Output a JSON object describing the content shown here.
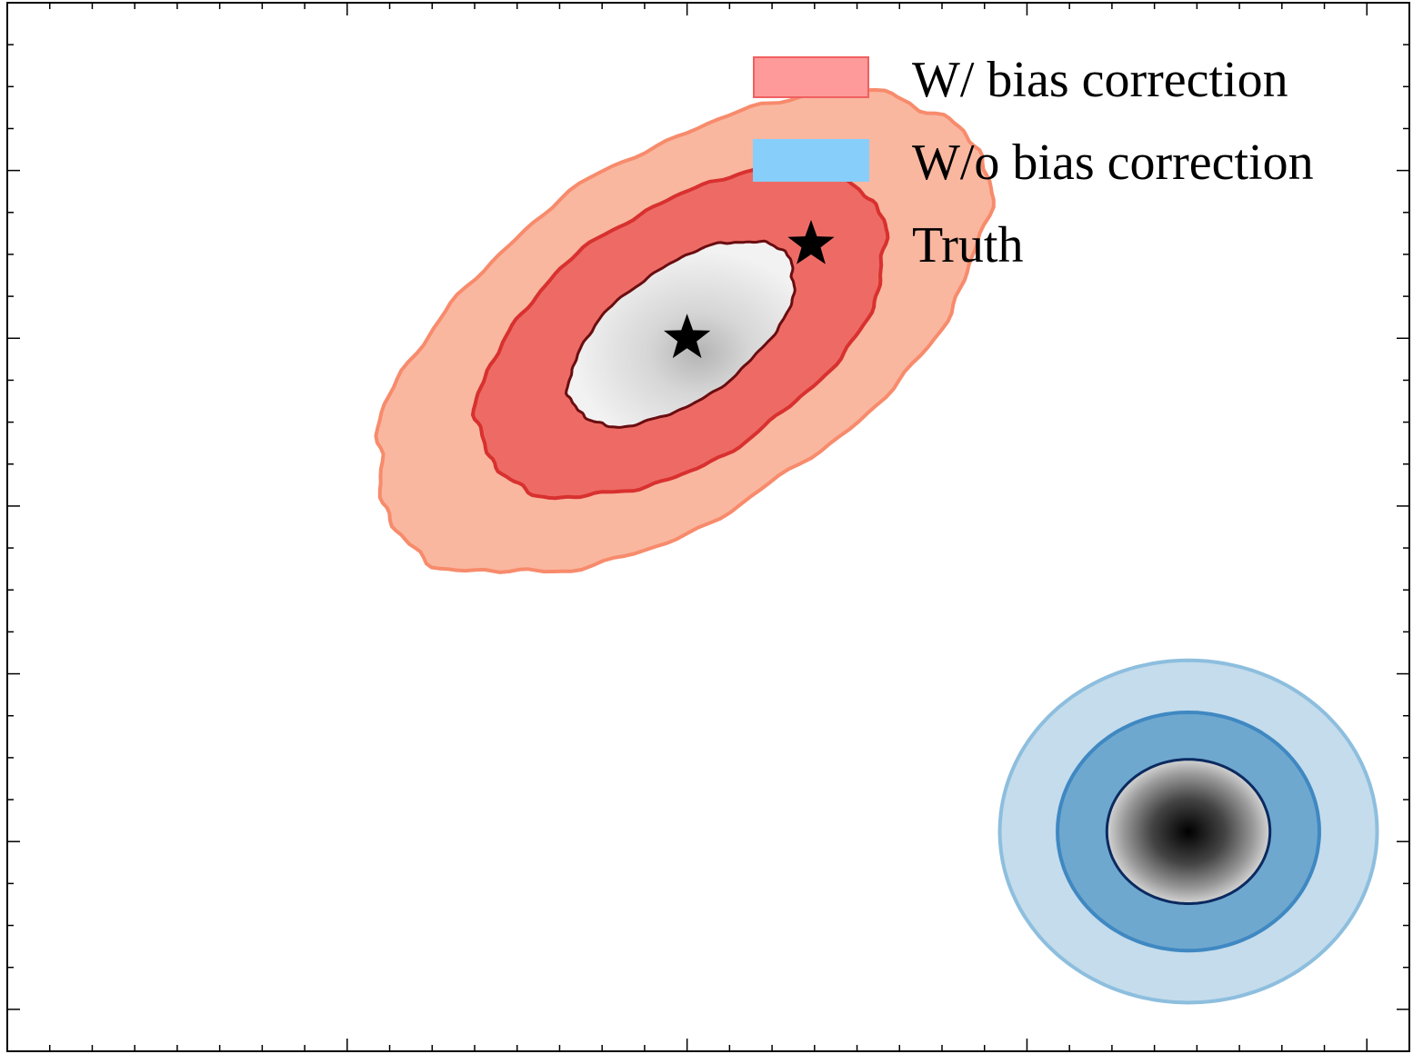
{
  "chart_data": {
    "type": "contour",
    "title": "",
    "xlabel": "",
    "ylabel": "",
    "tick_labels_visible": false,
    "grid": false,
    "legend_position": "top-right",
    "legend": [
      {
        "label": "W/ bias correction",
        "kind": "patch",
        "color": "#ff9a9a",
        "edge": "#f06060"
      },
      {
        "label": "W/o bias correction",
        "kind": "patch",
        "color": "#87cefa",
        "edge": "#87cefa"
      },
      {
        "label": "Truth",
        "kind": "star",
        "color": "#000000"
      }
    ],
    "series": [
      {
        "name": "W/ bias correction",
        "center": [
          3.97,
          4.03
        ],
        "levels": [
          {
            "rx": 2.05,
            "ry": 1.05,
            "rot": 34,
            "fill": "#fab7a0",
            "stroke": "#f78b6c"
          },
          {
            "rx": 1.36,
            "ry": 0.74,
            "rot": 34,
            "fill": "#ee6b65",
            "stroke": "#d8312f"
          },
          {
            "rx": 0.77,
            "ry": 0.39,
            "rot": 36,
            "fill": "#ececec",
            "stroke": "#6a0d10"
          }
        ],
        "peak": [
          4.2,
          3.78
        ]
      },
      {
        "name": "W/o bias correction",
        "center": [
          6.95,
          1.06
        ],
        "levels": [
          {
            "rx": 1.11,
            "ry": 1.02,
            "rot": 0,
            "fill": "#c4dcec",
            "stroke": "#8dbede"
          },
          {
            "rx": 0.77,
            "ry": 0.71,
            "rot": 0,
            "fill": "#6fa8cf",
            "stroke": "#3f88c2"
          },
          {
            "rx": 0.48,
            "ry": 0.43,
            "rot": 0,
            "fill": "#c8c8c8",
            "stroke": "#0b2a60"
          }
        ],
        "peak": [
          6.95,
          1.06
        ]
      }
    ],
    "truth": {
      "x": 4.0,
      "y": 4.0
    },
    "xlim": [
      0,
      8.25
    ],
    "ylim": [
      -0.25,
      6.0
    ]
  }
}
